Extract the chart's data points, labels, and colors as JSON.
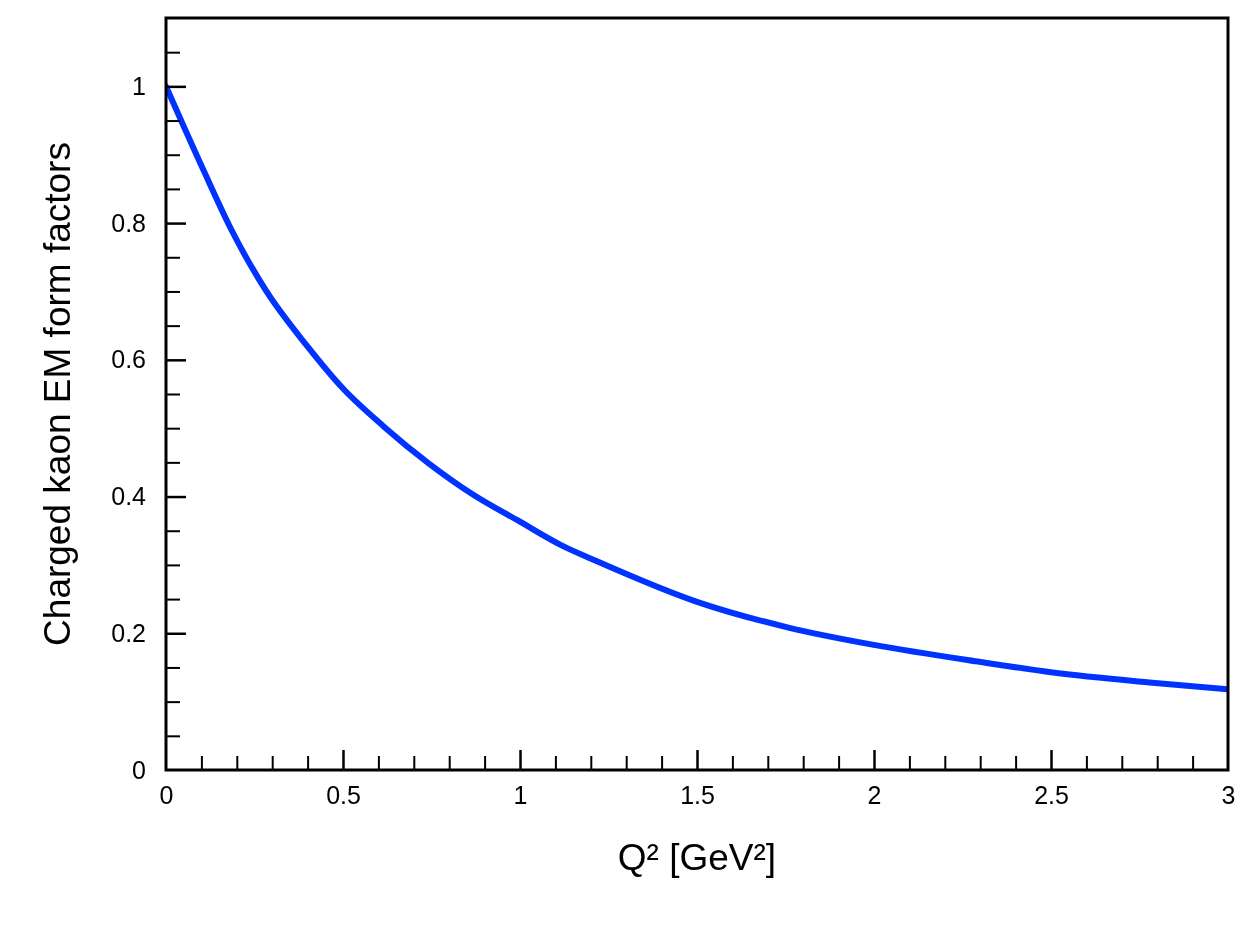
{
  "chart_data": {
    "type": "line",
    "xlabel": "Q² [GeV²]",
    "ylabel": "Charged kaon EM form factors",
    "x": [
      0,
      0.108,
      0.184,
      0.284,
      0.399,
      0.5,
      0.614,
      0.741,
      0.867,
      0.994,
      1.116,
      1.219,
      1.5,
      1.761,
      2,
      2.301,
      2.5,
      2.778,
      3
    ],
    "series": [
      {
        "color": "#0033ff",
        "values": [
          1,
          0.875,
          0.791,
          0.7,
          0.62,
          0.558,
          0.503,
          0.449,
          0.403,
          0.365,
          0.329,
          0.305,
          0.246,
          0.208,
          0.183,
          0.158,
          0.143,
          0.128,
          0.118
        ]
      }
    ],
    "xlim": [
      0,
      3
    ],
    "ylim": [
      0,
      1.1
    ],
    "xticks": [
      0,
      {
        "value": 0.1,
        "label": null
      },
      {
        "value": 0.2,
        "label": null
      },
      {
        "value": 0.3,
        "label": null
      },
      {
        "value": 0.4,
        "label": null
      },
      0.5,
      {
        "value": 0.6,
        "label": null
      },
      {
        "value": 0.7,
        "label": null
      },
      {
        "value": 0.8,
        "label": null
      },
      {
        "value": 0.9,
        "label": null
      },
      1,
      {
        "value": 1.1,
        "label": null
      },
      {
        "value": 1.2,
        "label": null
      },
      {
        "value": 1.3,
        "label": null
      },
      {
        "value": 1.4,
        "label": null
      },
      1.5,
      {
        "value": 1.6,
        "label": null
      },
      {
        "value": 1.7,
        "label": null
      },
      {
        "value": 1.8,
        "label": null
      },
      {
        "value": 1.9,
        "label": null
      },
      2,
      {
        "value": 2.1,
        "label": null
      },
      {
        "value": 2.2,
        "label": null
      },
      {
        "value": 2.3,
        "label": null
      },
      {
        "value": 2.4,
        "label": null
      },
      2.5,
      {
        "value": 2.6,
        "label": null
      },
      {
        "value": 2.7,
        "label": null
      },
      {
        "value": 2.8,
        "label": null
      },
      {
        "value": 2.9,
        "label": null
      },
      3
    ],
    "yticks": [
      0,
      {
        "value": 0.05,
        "label": null
      },
      {
        "value": 0.1,
        "label": null
      },
      {
        "value": 0.15,
        "label": null
      },
      0.2,
      {
        "value": 0.25,
        "label": null
      },
      {
        "value": 0.3,
        "label": null
      },
      {
        "value": 0.35,
        "label": null
      },
      0.4,
      {
        "value": 0.45,
        "label": null
      },
      {
        "value": 0.5,
        "label": null
      },
      {
        "value": 0.55,
        "label": null
      },
      0.6,
      {
        "value": 0.65,
        "label": null
      },
      {
        "value": 0.7,
        "label": null
      },
      {
        "value": 0.75,
        "label": null
      },
      0.8,
      {
        "value": 0.85,
        "label": null
      },
      {
        "value": 0.9,
        "label": null
      },
      {
        "value": 0.95,
        "label": null
      },
      1,
      {
        "value": 1.05,
        "label": null
      }
    ],
    "line_style": "solid",
    "marker": "none",
    "grid": false
  }
}
